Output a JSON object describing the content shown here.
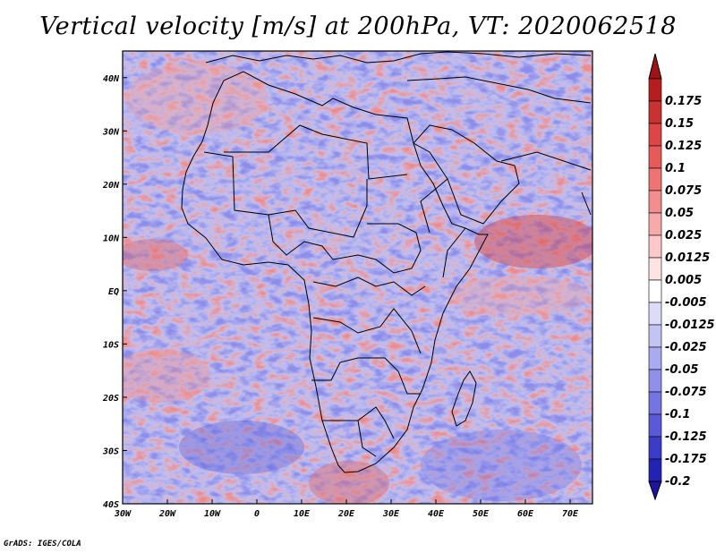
{
  "title": "Vertical velocity [m/s] at 200hPa, VT: 2020062518",
  "credit": "GrADS: IGES/COLA",
  "map": {
    "lon_range": [
      -30,
      75
    ],
    "lat_range": [
      -40,
      45
    ],
    "lon_ticks": [
      {
        "value": -30,
        "label": "30W"
      },
      {
        "value": -20,
        "label": "20W"
      },
      {
        "value": -10,
        "label": "10W"
      },
      {
        "value": 0,
        "label": "0"
      },
      {
        "value": 10,
        "label": "10E"
      },
      {
        "value": 20,
        "label": "20E"
      },
      {
        "value": 30,
        "label": "30E"
      },
      {
        "value": 40,
        "label": "40E"
      },
      {
        "value": 50,
        "label": "50E"
      },
      {
        "value": 60,
        "label": "60E"
      },
      {
        "value": 70,
        "label": "70E"
      }
    ],
    "lat_ticks": [
      {
        "value": 40,
        "label": "40N"
      },
      {
        "value": 30,
        "label": "30N"
      },
      {
        "value": 20,
        "label": "20N"
      },
      {
        "value": 10,
        "label": "10N"
      },
      {
        "value": 0,
        "label": "EQ"
      },
      {
        "value": -10,
        "label": "10S"
      },
      {
        "value": -20,
        "label": "20S"
      },
      {
        "value": -30,
        "label": "30S"
      },
      {
        "value": -40,
        "label": "40S"
      }
    ]
  },
  "colorbar": {
    "levels": [
      {
        "label": "0.175",
        "color": "#b41e1e"
      },
      {
        "label": "0.15",
        "color": "#c83232"
      },
      {
        "label": "0.125",
        "color": "#dc4646"
      },
      {
        "label": "0.1",
        "color": "#e65a5a"
      },
      {
        "label": "0.075",
        "color": "#ee7474"
      },
      {
        "label": "0.05",
        "color": "#f48e8e"
      },
      {
        "label": "0.025",
        "color": "#f8aaaa"
      },
      {
        "label": "0.0125",
        "color": "#fcc8c8"
      },
      {
        "label": "0.005",
        "color": "#fde4e4"
      },
      {
        "label": "-0.005",
        "color": "#ffffff"
      },
      {
        "label": "-0.0125",
        "color": "#dcdcf8"
      },
      {
        "label": "-0.025",
        "color": "#c4c4f4"
      },
      {
        "label": "-0.05",
        "color": "#aaaaf0"
      },
      {
        "label": "-0.075",
        "color": "#9090ea"
      },
      {
        "label": "-0.1",
        "color": "#7474e2"
      },
      {
        "label": "-0.125",
        "color": "#5a5ad8"
      },
      {
        "label": "-0.175",
        "color": "#3c3cc8"
      },
      {
        "label": "-0.2",
        "color": "#2222b4"
      }
    ],
    "top_arrow_color": "#9e1414",
    "bottom_arrow_color": "#1e14a0"
  }
}
